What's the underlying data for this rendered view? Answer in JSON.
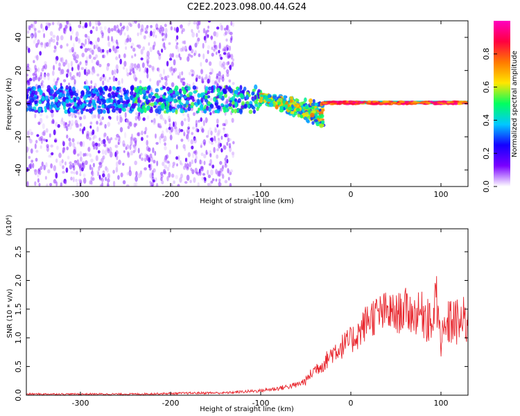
{
  "title": "C2E2.2023.098.00.44.G24",
  "chart_data": [
    {
      "type": "heatmap",
      "xlabel": "Height of straight line (km)",
      "ylabel": "Frequency (Hz)",
      "xlim": [
        -360,
        130
      ],
      "ylim": [
        -50,
        50
      ],
      "xticks": [
        -300,
        -200,
        -100,
        0,
        100
      ],
      "xtick_labels": [
        "-300",
        "-200",
        "-100",
        "0",
        "100"
      ],
      "yticks": [
        -40,
        -20,
        0,
        20,
        40
      ],
      "ytick_labels": [
        "-40",
        "-20",
        "0",
        "20",
        "40"
      ],
      "colorbar": {
        "label": "Normalized spectral amplitude",
        "range": [
          0,
          1
        ],
        "ticks": [
          0.0,
          0.2,
          0.4,
          0.6,
          0.8
        ],
        "tick_labels": [
          "0.0",
          "0.2",
          "0.4",
          "0.6",
          "0.8"
        ],
        "colormap": "rainbow",
        "colors": [
          "#ffffff",
          "#7a00ff",
          "#1400ff",
          "#00c8ff",
          "#00ff60",
          "#ffe600",
          "#ff7a00",
          "#ff0040",
          "#ff00c0"
        ]
      },
      "features": [
        {
          "name": "broadband noise",
          "x_range": [
            -360,
            -130
          ],
          "freq_range": [
            -50,
            50
          ],
          "amplitude": 0.1
        },
        {
          "name": "central band",
          "x_range": [
            -360,
            -100
          ],
          "freq_range": [
            -5,
            10
          ],
          "amplitude": 0.3
        },
        {
          "name": "converging signal",
          "x_range": [
            -100,
            -30
          ],
          "freq_range": [
            -20,
            7
          ],
          "amplitude": 0.45
        },
        {
          "name": "zero-frequency line",
          "x_range": [
            -30,
            130
          ],
          "freq_center": 0.5,
          "amplitude": 0.9
        }
      ]
    },
    {
      "type": "line",
      "xlabel": "Height of straight line (km)",
      "ylabel": "SNR (10 * v/v)",
      "y_multiplier": "(x10⁴)",
      "xlim": [
        -360,
        130
      ],
      "ylim": [
        0,
        2.9
      ],
      "xticks": [
        -300,
        -200,
        -100,
        0,
        100
      ],
      "xtick_labels": [
        "-300",
        "-200",
        "-100",
        "0",
        "100"
      ],
      "yticks": [
        0.0,
        0.5,
        1.0,
        1.5,
        2.0,
        2.5
      ],
      "ytick_labels": [
        "0.0",
        "0.5",
        "1.0",
        "1.5",
        "2.0",
        "2.5"
      ],
      "series": [
        {
          "color": "#e8262d",
          "x": [
            -360,
            -320,
            -280,
            -240,
            -200,
            -160,
            -140,
            -120,
            -100,
            -80,
            -60,
            -50,
            -40,
            -30,
            -20,
            -10,
            0,
            10,
            20,
            30,
            40,
            50,
            60,
            70,
            80,
            90,
            95,
            100,
            110,
            120,
            130
          ],
          "y": [
            0.02,
            0.02,
            0.02,
            0.02,
            0.03,
            0.04,
            0.04,
            0.06,
            0.08,
            0.12,
            0.18,
            0.25,
            0.45,
            0.55,
            0.75,
            0.85,
            0.95,
            1.1,
            1.35,
            1.4,
            1.45,
            1.4,
            1.5,
            1.4,
            1.45,
            1.35,
            1.7,
            0.9,
            1.3,
            1.25,
            1.3
          ]
        }
      ]
    }
  ]
}
